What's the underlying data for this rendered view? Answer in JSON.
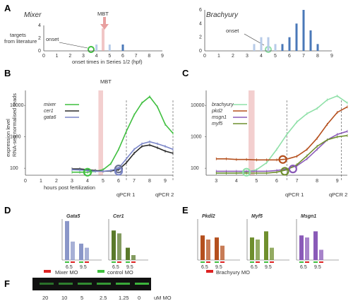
{
  "colors": {
    "green": "#3fbf3f",
    "dark": "#2a2a2a",
    "slate": "#7b86c8",
    "light_green": "#8fe0a8",
    "rust": "#b5501e",
    "olive": "#6f8f2e",
    "purple": "#8a5ab8",
    "bar_light": "#b7cbe8",
    "bar_dark": "#4a78b8",
    "mbt": "#e8a0a0",
    "gataBar": "#8a96c8",
    "cerBar": "#5a7a2a"
  },
  "panels": {
    "A": {
      "label": "A",
      "left_title": "Mixer",
      "right_title": "Brachyury",
      "ylabel": "targets\nfrom literature",
      "xlabel": "onset times in Series 1/2 (hpf)",
      "onset_label": "onset",
      "mbt_label": "MBT",
      "x_ticks": [
        "0",
        "1",
        "2",
        "3",
        "4",
        "5",
        "6",
        "7",
        "8",
        "9"
      ],
      "y_ticks_left": [
        "0",
        "2",
        "4"
      ],
      "y_ticks_right": [
        "0",
        "2",
        "4",
        "6"
      ]
    },
    "B": {
      "label": "B",
      "ylabel": "expression level\nRNA-seq normalised reads",
      "xlabel": "hours  post fertilization",
      "mbt_label": "MBT",
      "y_ticks": [
        "100",
        "1000",
        "10000"
      ],
      "x_ticks": [
        "0",
        "1",
        "2",
        "3",
        "4",
        "5",
        "6",
        "7",
        "8",
        "9"
      ],
      "qpcr1": "qPCR 1",
      "qpcr2": "qPCR 2"
    },
    "C": {
      "label": "C",
      "y_ticks": [
        "100",
        "1000",
        "10000"
      ],
      "x_ticks": [
        "3",
        "4",
        "5",
        "6",
        "7",
        "8",
        "9"
      ],
      "qpcr1": "qPCR 1",
      "qpcr2": "qPCR 2"
    },
    "D": {
      "label": "D",
      "genes": [
        "Gata5",
        "Cer1"
      ],
      "stages": [
        "6.5",
        "9.5"
      ],
      "legend_mo": "Mixer  MO",
      "legend_ctrl": "control MO"
    },
    "E": {
      "label": "E",
      "genes": [
        "Pkdl2",
        "Myf5",
        "Msgn1"
      ],
      "stages": [
        "6.5",
        "9.5"
      ],
      "legend_mo": "Brachyury MO"
    },
    "F": {
      "label": "F",
      "lanes": [
        "20",
        "10",
        "5",
        "2.5",
        "1.25",
        "0"
      ],
      "unit": "uM MO"
    }
  },
  "chart_data": [
    {
      "id": "A-left",
      "type": "bar",
      "title": "Mixer",
      "xlabel": "onset times in Series 1/2 (hpf)",
      "ylabel": "targets from literature",
      "x": [
        4.0,
        5.0,
        6.0
      ],
      "values": [
        1,
        1,
        1
      ],
      "xlim": [
        0,
        9
      ],
      "ylim": [
        0,
        4
      ]
    },
    {
      "id": "A-right",
      "type": "bar",
      "title": "Brachyury",
      "xlabel": "onset times in Series 1/2 (hpf)",
      "ylabel": "targets from literature",
      "x": [
        3.5,
        4.0,
        4.5,
        5.0,
        5.5,
        6.0,
        6.5,
        7.0,
        7.5,
        8.0
      ],
      "values": [
        1,
        2,
        2,
        1,
        1,
        2,
        4,
        6,
        3,
        1
      ],
      "xlim": [
        0,
        9
      ],
      "ylim": [
        0,
        6
      ]
    },
    {
      "id": "B",
      "type": "line",
      "xlabel": "hours  post fertilization",
      "ylabel": "expression level RNA-seq normalised reads",
      "log_y": true,
      "xlim": [
        0,
        9.5
      ],
      "ylim": [
        60,
        30000
      ],
      "series": [
        {
          "name": "mixer",
          "x": [
            3,
            3.5,
            4,
            4.5,
            5,
            5.5,
            6,
            6.5,
            7,
            7.5,
            8,
            8.5,
            9,
            9.5
          ],
          "values": [
            75,
            75,
            75,
            80,
            90,
            140,
            400,
            1500,
            5000,
            12000,
            19000,
            9000,
            2500,
            1300
          ]
        },
        {
          "name": "cer1",
          "x": [
            3,
            3.5,
            4,
            4.5,
            5,
            5.5,
            6,
            6.5,
            7,
            7.5,
            8,
            8.5,
            9,
            9.5
          ],
          "values": [
            95,
            95,
            90,
            85,
            80,
            82,
            90,
            150,
            300,
            500,
            550,
            450,
            350,
            300
          ]
        },
        {
          "name": "gata6",
          "x": [
            3,
            3.5,
            4,
            4.5,
            5,
            5.5,
            6,
            6.5,
            7,
            7.5,
            8,
            8.5,
            9,
            9.5
          ],
          "values": [
            90,
            88,
            85,
            80,
            80,
            85,
            100,
            200,
            400,
            600,
            700,
            600,
            500,
            400
          ]
        }
      ]
    },
    {
      "id": "C",
      "type": "line",
      "log_y": true,
      "xlim": [
        2.5,
        9.5
      ],
      "ylim": [
        60,
        30000
      ],
      "series": [
        {
          "name": "brachyury",
          "x": [
            3,
            3.5,
            4,
            4.5,
            5,
            5.5,
            6,
            6.5,
            7,
            7.5,
            8,
            8.5,
            9,
            9.5
          ],
          "values": [
            70,
            70,
            70,
            75,
            90,
            150,
            400,
            1200,
            3000,
            5500,
            8000,
            15000,
            20000,
            12000
          ]
        },
        {
          "name": "pkd2",
          "x": [
            3,
            3.5,
            4,
            4.5,
            5,
            5.5,
            6,
            6.5,
            7,
            7.5,
            8,
            8.5,
            9,
            9.5
          ],
          "values": [
            200,
            200,
            190,
            190,
            185,
            185,
            185,
            195,
            240,
            400,
            900,
            2500,
            6000,
            9000
          ]
        },
        {
          "name": "msgn1",
          "x": [
            3,
            3.5,
            4,
            4.5,
            5,
            5.5,
            6,
            6.5,
            7,
            7.5,
            8,
            8.5,
            9,
            9.5
          ],
          "values": [
            80,
            80,
            80,
            80,
            80,
            80,
            85,
            95,
            120,
            200,
            400,
            800,
            1200,
            1500
          ]
        },
        {
          "name": "myf5",
          "x": [
            3,
            3.5,
            4,
            4.5,
            5,
            5.5,
            6,
            6.5,
            7,
            7.5,
            8,
            8.5,
            9,
            9.5
          ],
          "values": [
            70,
            70,
            70,
            70,
            70,
            70,
            75,
            90,
            130,
            250,
            500,
            800,
            1000,
            1100
          ]
        }
      ]
    },
    {
      "id": "D",
      "type": "bar",
      "categories": [
        "Gata5 6.5",
        "Gata5 9.5",
        "Cer1 6.5",
        "Cer1 9.5"
      ],
      "series": [
        {
          "name": "control MO",
          "values": [
            0.95,
            0.4,
            0.72,
            0.3
          ]
        },
        {
          "name": "Mixer MO",
          "values": [
            0.45,
            0.3,
            0.65,
            0.12
          ]
        }
      ],
      "ylim": [
        0,
        1.0
      ]
    },
    {
      "id": "E",
      "type": "bar",
      "categories": [
        "Pkdl2 6.5",
        "Pkdl2 9.5",
        "Myf5 6.5",
        "Myf5 9.5",
        "Msgn1 6.5",
        "Msgn1 9.5"
      ],
      "series": [
        {
          "name": "control MO",
          "values": [
            0.6,
            0.55,
            0.55,
            0.7,
            0.6,
            0.7
          ]
        },
        {
          "name": "Brachyury MO",
          "values": [
            0.5,
            0.35,
            0.5,
            0.3,
            0.55,
            0.25
          ]
        }
      ],
      "ylim": [
        0,
        1.0
      ]
    }
  ]
}
